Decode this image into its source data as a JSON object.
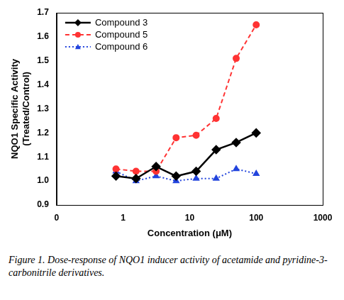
{
  "chart_data": {
    "type": "line",
    "caption": "Figure 1. Dose-response of NQO1 inducer activity of acetamide and pyridine-3-carbonitrile derivatives.",
    "x_label": "Concentration (μM)",
    "y_label": [
      "NQO1 Specific Activity",
      "(Treated/Control)"
    ],
    "x": [
      0.78,
      1.56,
      3.125,
      6.25,
      12.5,
      25,
      50,
      100
    ],
    "series": [
      {
        "name": "Compound 3",
        "color": "#000000",
        "marker": "diamond",
        "line_style": "solid",
        "values": [
          1.02,
          1.01,
          1.06,
          1.02,
          1.04,
          1.13,
          1.16,
          1.2
        ]
      },
      {
        "name": "Compound 5",
        "color": "#ff3333",
        "marker": "circle",
        "line_style": "dashed",
        "values": [
          1.05,
          1.04,
          1.04,
          1.18,
          1.19,
          1.26,
          1.51,
          1.65
        ]
      },
      {
        "name": "Compound 6",
        "color": "#2244dd",
        "marker": "triangle",
        "line_style": "dotted",
        "values": [
          1.04,
          1.0,
          1.02,
          1.0,
          1.01,
          1.01,
          1.05,
          1.03
        ]
      }
    ],
    "log": "x",
    "xlim": [
      0.1,
      1000
    ],
    "xticks": [
      {
        "value": 0.1,
        "label": "0"
      },
      1,
      10,
      100,
      1000
    ],
    "ylim": [
      0.9,
      1.7
    ],
    "yticks": [
      0.9,
      {
        "value": 1,
        "label": "1.0"
      },
      1.1,
      1.2,
      1.3,
      1.4,
      1.5,
      1.6,
      1.7
    ],
    "grid": false,
    "legend": "top-left"
  }
}
